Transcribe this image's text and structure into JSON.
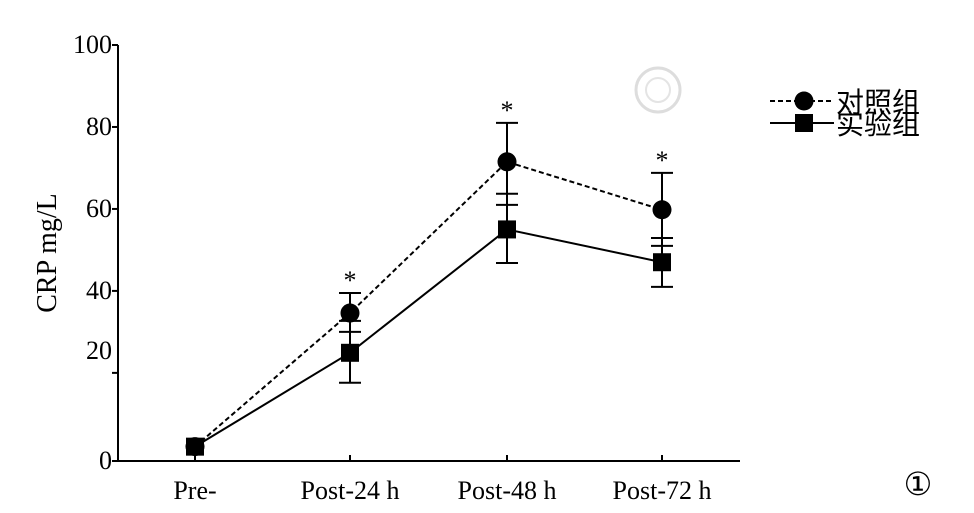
{
  "chart_data": {
    "type": "line",
    "title": "",
    "xlabel": "",
    "ylabel": "CRP mg/L",
    "categories": [
      "Pre-",
      "Post-24 h",
      "Post-48 h",
      "Post-72 h"
    ],
    "ylim": [
      -1.5,
      100
    ],
    "yticks": [
      0,
      20,
      40,
      60,
      80,
      100
    ],
    "series": [
      {
        "name": "对照组",
        "marker": "circle",
        "dash": true,
        "values": [
          2,
          34.6,
          71.5,
          59.8
        ],
        "err_upper": [
          2,
          39.5,
          81,
          68.8
        ],
        "err_lower": [
          2,
          30,
          61,
          51
        ]
      },
      {
        "name": "实验组",
        "marker": "square",
        "dash": false,
        "values": [
          2,
          24.9,
          55,
          47
        ],
        "err_upper": [
          2,
          32.7,
          63.7,
          52.9
        ],
        "err_lower": [
          2,
          17.6,
          46.8,
          41
        ]
      }
    ],
    "annotations": [
      "*",
      "*",
      "*"
    ],
    "annotation_categories": [
      1,
      2,
      3
    ],
    "legend_position": "top-right",
    "figure_label": "①"
  }
}
